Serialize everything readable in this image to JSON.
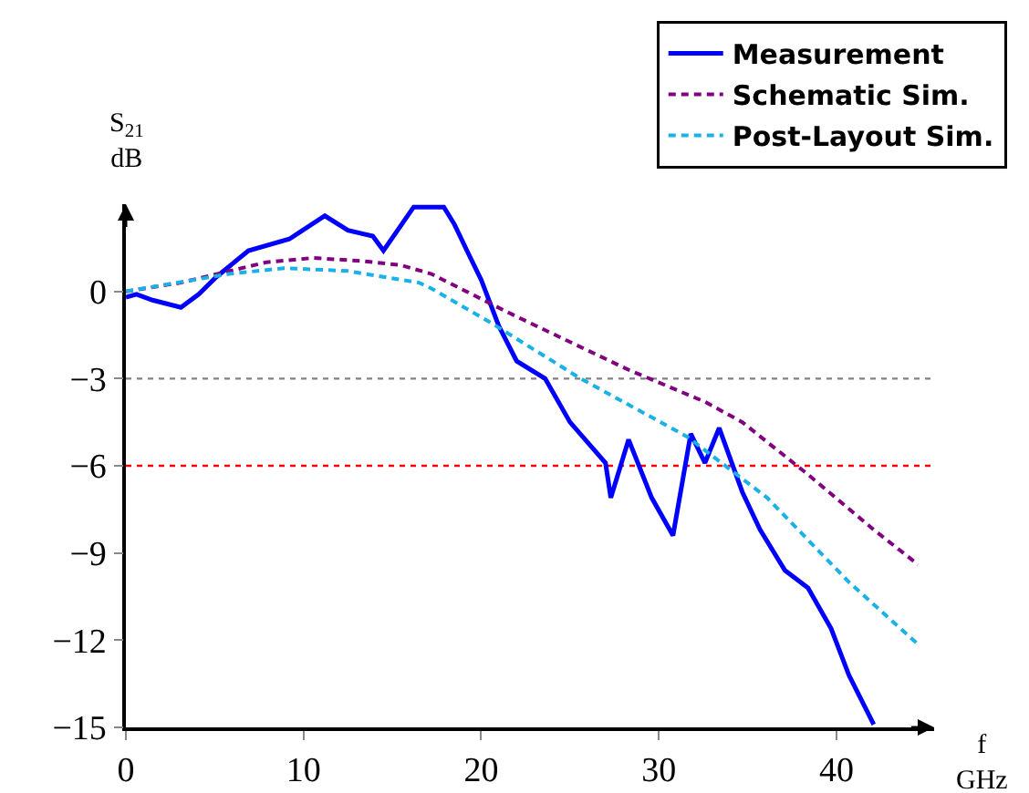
{
  "chart_data": {
    "type": "line",
    "xlabel": "f\nGHz",
    "ylabel": "S$_{21}$\ndB",
    "xlim": [
      0,
      45.5
    ],
    "ylim": [
      -15,
      3
    ],
    "xticks": [
      0,
      10,
      20,
      30,
      40
    ],
    "yticks": [
      0,
      -3,
      -6,
      -9,
      -12,
      -15
    ],
    "grid": false,
    "legend": "top right",
    "marker": "none",
    "ref_lines": [
      {
        "axis": "y",
        "value": -3,
        "color": "#808080",
        "line_style": "dotted"
      },
      {
        "axis": "y",
        "value": -6,
        "color": "#ff0000",
        "line_style": "dotted"
      }
    ],
    "series": [
      {
        "name": "Measurement",
        "color": "#0000ff",
        "line_style": "solid",
        "x": [
          0,
          0.6,
          1.5,
          3.1,
          4.1,
          5.1,
          6.9,
          9.2,
          11.2,
          12.5,
          13.9,
          14.5,
          16.2,
          17.9,
          18.5,
          19.2,
          20,
          21,
          22,
          23.6,
          25,
          27,
          27.3,
          28.3,
          29.6,
          30.8,
          31.8,
          32.6,
          33.4,
          34.7,
          35.7,
          37.1,
          38.4,
          39.7,
          40.7,
          42.1
        ],
        "values": [
          -0.2,
          -0.1,
          -0.3,
          -0.55,
          -0.1,
          0.5,
          1.4,
          1.8,
          2.6,
          2.1,
          1.9,
          1.4,
          2.9,
          2.9,
          2.3,
          1.4,
          0.4,
          -1.2,
          -2.4,
          -3,
          -4.5,
          -5.9,
          -7.1,
          -5.1,
          -7.1,
          -8.4,
          -4.9,
          -5.9,
          -4.7,
          -6.9,
          -8.2,
          -9.6,
          -10.2,
          -11.6,
          -13.2,
          -14.9
        ]
      },
      {
        "name": "Schematic Sim.",
        "color": "#800080",
        "line_style": "dashed",
        "x": [
          0,
          3.1,
          7.9,
          10.5,
          13.2,
          15.5,
          17.2,
          21.6,
          24,
          28.3,
          32.6,
          34.7,
          38.4,
          42.1,
          44.6
        ],
        "values": [
          0,
          0.3,
          1,
          1.15,
          1.05,
          0.9,
          0.6,
          -0.75,
          -1.45,
          -2.7,
          -3.8,
          -4.5,
          -6.3,
          -8.2,
          -9.4
        ]
      },
      {
        "name": "Post-Layout Sim.",
        "color": "#1ab0e8",
        "line_style": "dashed",
        "x": [
          0,
          5.8,
          8.9,
          12.5,
          16.5,
          17.2,
          20.6,
          25.6,
          31.6,
          36.1,
          40.7,
          44.7
        ],
        "values": [
          0,
          0.6,
          0.8,
          0.7,
          0.3,
          0.1,
          -1.1,
          -3,
          -5,
          -7.1,
          -10,
          -12.2
        ]
      }
    ]
  }
}
